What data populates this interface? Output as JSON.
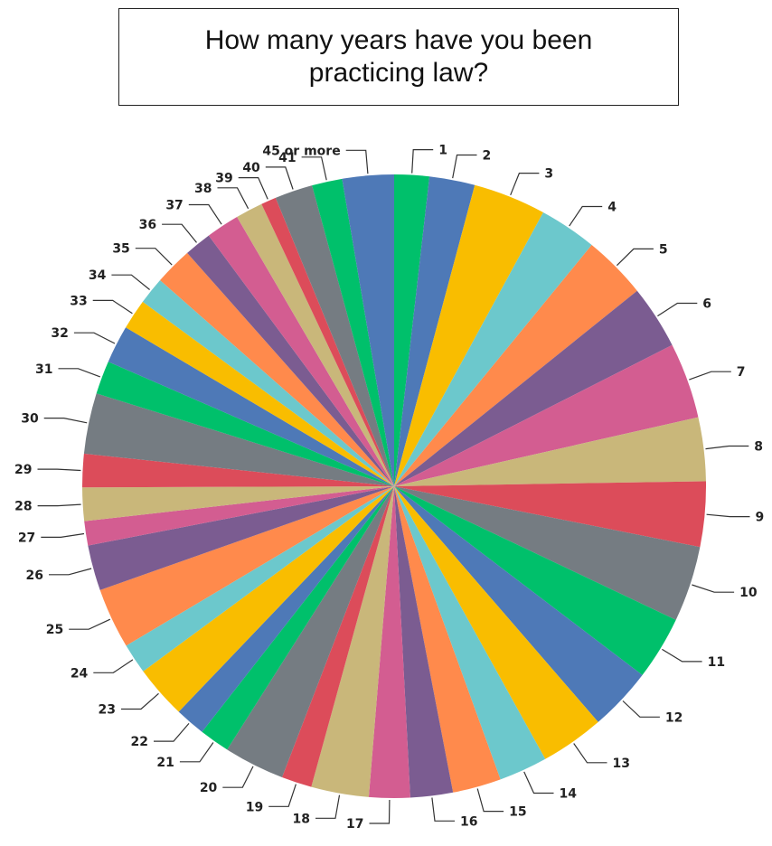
{
  "chart_data": {
    "type": "pie",
    "title": "How many years have you been practicing law?",
    "categories": [
      "1",
      "2",
      "3",
      "4",
      "5",
      "6",
      "7",
      "8",
      "9",
      "10",
      "11",
      "12",
      "13",
      "14",
      "15",
      "16",
      "17",
      "18",
      "19",
      "20",
      "21",
      "22",
      "23",
      "24",
      "25",
      "26",
      "27",
      "28",
      "29",
      "30",
      "31",
      "32",
      "33",
      "34",
      "35",
      "36",
      "37",
      "38",
      "39",
      "40",
      "41",
      "45 or more"
    ],
    "values": [
      2.3,
      3.0,
      4.8,
      3.8,
      4.2,
      4.2,
      5.0,
      4.2,
      4.3,
      5.0,
      4.2,
      4.2,
      4.2,
      3.2,
      3.2,
      2.8,
      2.7,
      3.8,
      2.0,
      4.0,
      2.0,
      2.0,
      3.5,
      2.0,
      4.0,
      3.0,
      1.6,
      2.2,
      2.2,
      4.0,
      2.2,
      2.5,
      2.0,
      1.8,
      2.5,
      1.8,
      2.2,
      1.8,
      1.0,
      2.5,
      2.0,
      3.4
    ],
    "colors": [
      "#00c06b",
      "#4e79b7",
      "#f9bd00",
      "#6cc8cc",
      "#ff8a4c",
      "#7b5c91",
      "#d35d91",
      "#c9b77a",
      "#dc4c5a",
      "#757c82"
    ],
    "legend": "none"
  }
}
